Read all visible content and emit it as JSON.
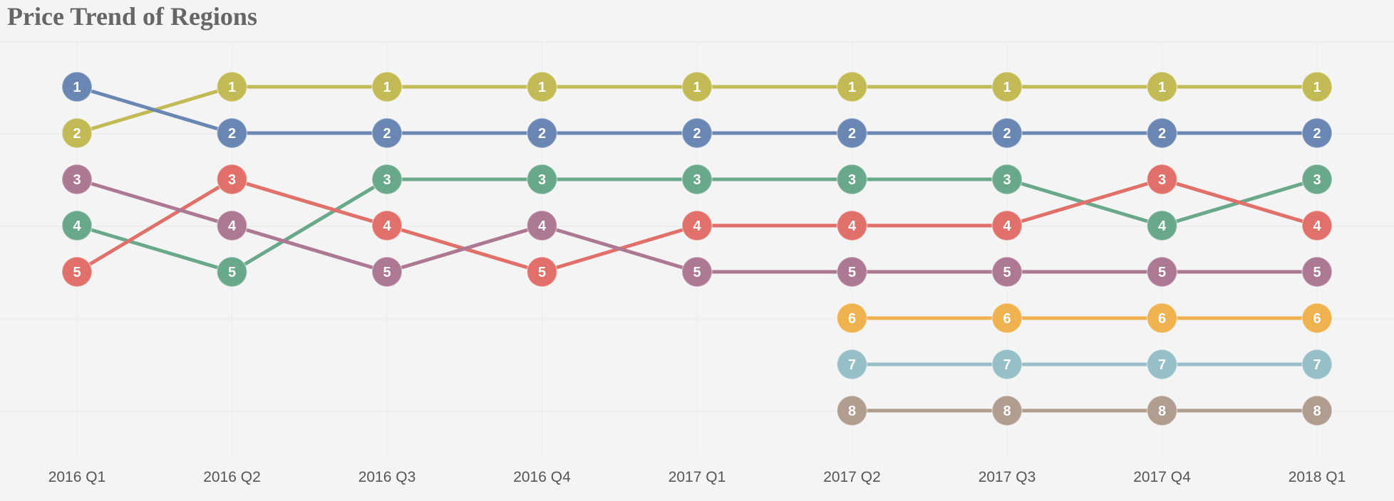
{
  "chart_data": {
    "type": "line",
    "title": "Price Trend of Regions",
    "xlabel": "",
    "ylabel": "",
    "categories": [
      "2016 Q1",
      "2016 Q2",
      "2016 Q3",
      "2016 Q4",
      "2017 Q1",
      "2017 Q2",
      "2017 Q3",
      "2017 Q4",
      "2018 Q1"
    ],
    "y_inverted": true,
    "ylim": [
      1,
      8
    ],
    "grid": true,
    "legend": "none",
    "series": [
      {
        "color": "#c2bb55",
        "values": [
          2,
          1,
          1,
          1,
          1,
          1,
          1,
          1,
          1
        ]
      },
      {
        "color": "#6a86b3",
        "values": [
          1,
          2,
          2,
          2,
          2,
          2,
          2,
          2,
          2
        ]
      },
      {
        "color": "#69a88a",
        "values": [
          4,
          5,
          3,
          3,
          3,
          3,
          3,
          4,
          3
        ]
      },
      {
        "color": "#e07069",
        "values": [
          5,
          3,
          4,
          5,
          4,
          4,
          4,
          3,
          4
        ]
      },
      {
        "color": "#ad7893",
        "values": [
          3,
          4,
          5,
          4,
          5,
          5,
          5,
          5,
          5
        ]
      },
      {
        "color": "#f0b14f",
        "values": [
          null,
          null,
          null,
          null,
          null,
          6,
          6,
          6,
          6
        ]
      },
      {
        "color": "#96bfc7",
        "values": [
          null,
          null,
          null,
          null,
          null,
          7,
          7,
          7,
          7
        ]
      },
      {
        "color": "#b19c90",
        "values": [
          null,
          null,
          null,
          null,
          null,
          8,
          8,
          8,
          8
        ]
      }
    ]
  }
}
